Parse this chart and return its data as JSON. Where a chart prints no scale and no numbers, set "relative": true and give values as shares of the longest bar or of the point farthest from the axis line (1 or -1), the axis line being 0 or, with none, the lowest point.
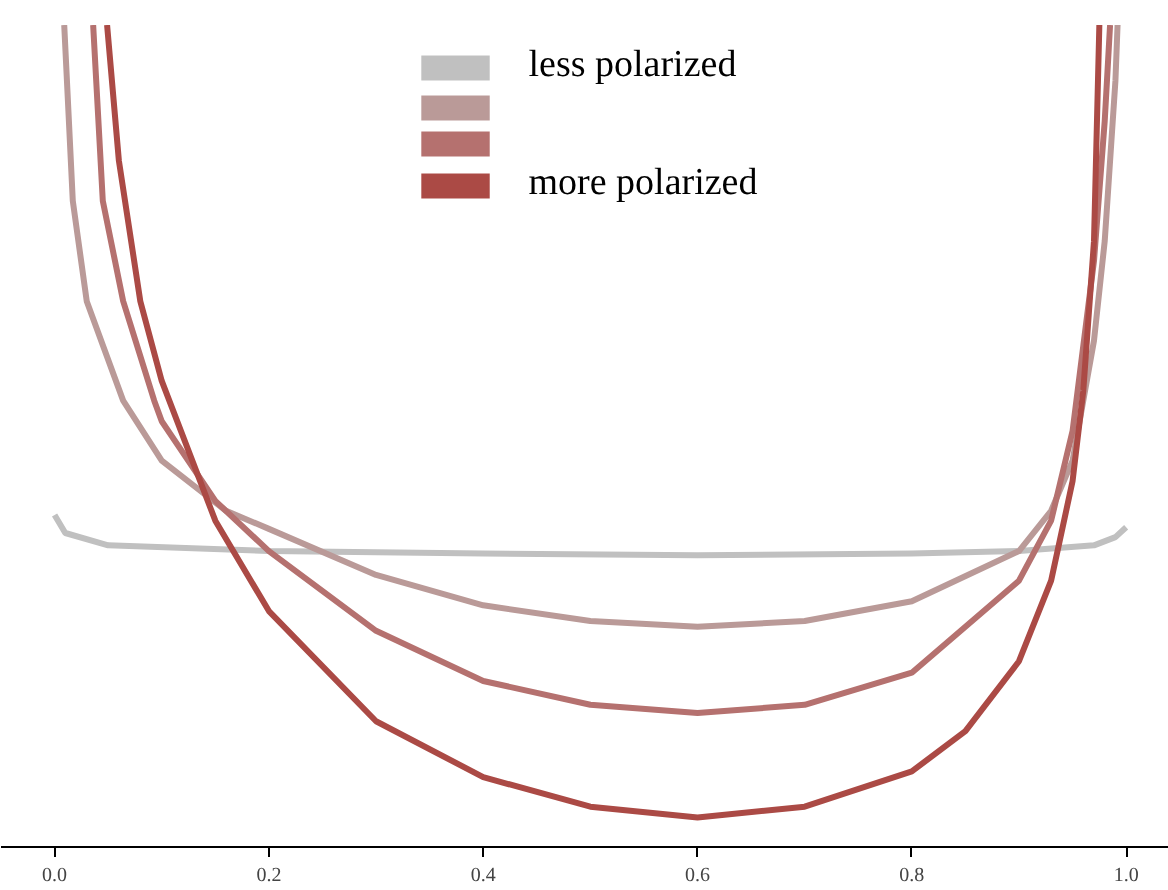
{
  "chart_data": {
    "type": "line",
    "relative": true,
    "xlim": [
      -0.05,
      1.04
    ],
    "xticks": [
      {
        "value": 0,
        "label": "0.0"
      },
      {
        "value": 0.2,
        "label": "0.2"
      },
      {
        "value": 0.4,
        "label": "0.4"
      },
      {
        "value": 0.6,
        "label": "0.6"
      },
      {
        "value": 0.8,
        "label": "0.8"
      },
      {
        "value": 1,
        "label": "1.0"
      }
    ],
    "grid": false,
    "legend": "top",
    "tick_labels": "x",
    "marker": "none",
    "line_style": "solid",
    "series": [
      {
        "name": "less polarized",
        "color": "#c0c0c0",
        "x": [
          0,
          0.01,
          0.05,
          0.2,
          0.4,
          0.6,
          0.8,
          0.9,
          0.97,
          0.99,
          1
        ],
        "values": [
          0.404,
          0.382,
          0.367,
          0.36,
          0.357,
          0.355,
          0.357,
          0.36,
          0.367,
          0.377,
          0.389
        ]
      },
      {
        "color": "#ba9a98",
        "x": [
          0.009,
          0.017,
          0.03,
          0.064,
          0.1,
          0.16,
          0.2,
          0.3,
          0.4,
          0.5,
          0.6,
          0.7,
          0.8,
          0.9,
          0.93,
          0.95,
          0.97,
          0.98,
          0.99,
          0.992
        ],
        "values": [
          1,
          0.786,
          0.664,
          0.543,
          0.47,
          0.409,
          0.387,
          0.331,
          0.294,
          0.275,
          0.268,
          0.275,
          0.299,
          0.36,
          0.409,
          0.47,
          0.616,
          0.737,
          0.932,
          1
        ]
      },
      {
        "color": "#b5716f",
        "x": [
          0.036,
          0.045,
          0.064,
          0.093,
          0.1,
          0.15,
          0.2,
          0.3,
          0.4,
          0.5,
          0.6,
          0.7,
          0.8,
          0.9,
          0.93,
          0.95,
          0.97,
          0.98,
          0.985
        ],
        "values": [
          1,
          0.786,
          0.664,
          0.543,
          0.518,
          0.421,
          0.36,
          0.263,
          0.202,
          0.173,
          0.163,
          0.173,
          0.212,
          0.324,
          0.397,
          0.506,
          0.713,
          0.883,
          1
        ]
      },
      {
        "name": "more polarized",
        "color": "#ab4a45",
        "x": [
          0.049,
          0.06,
          0.08,
          0.1,
          0.15,
          0.2,
          0.3,
          0.4,
          0.5,
          0.6,
          0.7,
          0.8,
          0.85,
          0.9,
          0.93,
          0.95,
          0.96,
          0.97,
          0.975
        ],
        "values": [
          1,
          0.835,
          0.664,
          0.567,
          0.397,
          0.287,
          0.153,
          0.085,
          0.049,
          0.036,
          0.049,
          0.092,
          0.141,
          0.226,
          0.324,
          0.445,
          0.555,
          0.737,
          1
        ]
      }
    ]
  }
}
